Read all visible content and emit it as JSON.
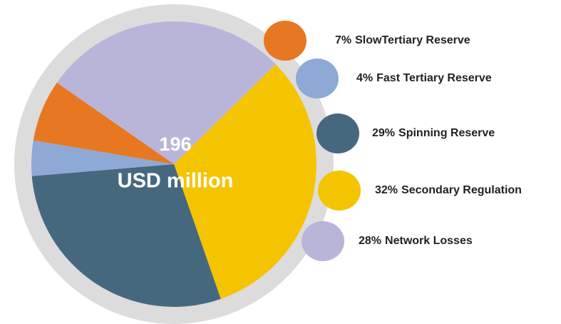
{
  "chart_data": {
    "type": "pie",
    "center_value": 196,
    "center_label": "USD million",
    "categories": [
      "Secondary Regulation",
      "Spinning Reserve",
      "Fast Tertiary Reserve",
      "SlowTertiary Reserve",
      "Network Losses"
    ],
    "values": [
      32,
      29,
      4,
      7,
      28
    ],
    "value_labels": [
      "32%",
      "29%",
      "4%",
      "7%",
      "28%"
    ],
    "colors": [
      "#f5c400",
      "#46687f",
      "#8ea9d6",
      "#e87722",
      "#b9b5d9"
    ]
  }
}
